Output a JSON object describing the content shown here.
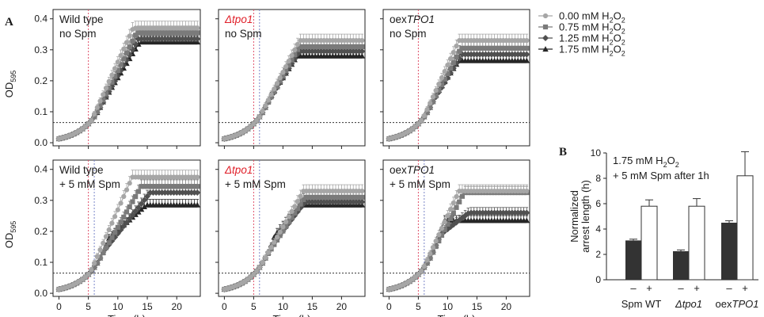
{
  "figure": {
    "letter_a": "A",
    "letter_b": "B",
    "ylabel_a_main": "OD",
    "ylabel_a_sub": "595",
    "xlabel_a": "Time (h)",
    "threshold_od": 0.065,
    "spm_time_wt": 5,
    "spm_time_mut": 6,
    "colors": {
      "s0": "#a6a6a6",
      "s1": "#7a7a7a",
      "s2": "#505050",
      "s3": "#262626",
      "vline_red": "#e0506a",
      "vline_blue": "#7a86c8",
      "frame": "#222222"
    },
    "legend": [
      {
        "prefix": "0.00 mM H",
        "sub": "2",
        "mid": "O",
        "sub2": "2",
        "marker": "circle"
      },
      {
        "prefix": "0.75 mM H",
        "sub": "2",
        "mid": "O",
        "sub2": "2",
        "marker": "square"
      },
      {
        "prefix": "1.25 mM H",
        "sub": "2",
        "mid": "O",
        "sub2": "2",
        "marker": "diamond"
      },
      {
        "prefix": "1.75 mM H",
        "sub": "2",
        "mid": "O",
        "sub2": "2",
        "marker": "triangle"
      }
    ]
  },
  "chart_data": [
    {
      "type": "line",
      "panel": "A-top-left",
      "label_line1_plain": "Wild type",
      "label_line1_italic": "",
      "label_line1_red": false,
      "label_line2": "no Spm",
      "x": [
        0,
        24
      ],
      "xlim": [
        -1,
        24
      ],
      "ylim": [
        -0.01,
        0.43
      ],
      "xticks": [
        0,
        5,
        10,
        15,
        20
      ],
      "yticks": [
        0.0,
        0.1,
        0.2,
        0.3,
        0.4
      ],
      "series": [
        {
          "lag": 5.5,
          "rate": 0.042,
          "plateau": 0.37
        },
        {
          "lag": 6.2,
          "rate": 0.038,
          "plateau": 0.355
        },
        {
          "lag": 6.8,
          "rate": 0.034,
          "plateau": 0.335
        },
        {
          "lag": 7.4,
          "rate": 0.031,
          "plateau": 0.325
        }
      ]
    },
    {
      "type": "line",
      "panel": "A-top-middle",
      "label_line1_plain": "",
      "label_line1_italic": "Δtpo1",
      "label_line1_red": true,
      "label_line2": "no Spm",
      "x": [
        0,
        24
      ],
      "xlim": [
        -1,
        24
      ],
      "ylim": [
        -0.01,
        0.43
      ],
      "xticks": [
        0,
        5,
        10,
        15,
        20
      ],
      "yticks": [
        0.0,
        0.1,
        0.2,
        0.3,
        0.4
      ],
      "series": [
        {
          "lag": 6.0,
          "rate": 0.036,
          "plateau": 0.33
        },
        {
          "lag": 6.8,
          "rate": 0.034,
          "plateau": 0.31
        },
        {
          "lag": 7.3,
          "rate": 0.031,
          "plateau": 0.295
        },
        {
          "lag": 7.8,
          "rate": 0.029,
          "plateau": 0.28
        }
      ]
    },
    {
      "type": "line",
      "panel": "A-top-right",
      "label_line1_plain": "oex",
      "label_line1_italic": "TPO1",
      "label_line1_red": false,
      "label_line2": "no Spm",
      "x": [
        0,
        24
      ],
      "xlim": [
        -1,
        24
      ],
      "ylim": [
        -0.01,
        0.43
      ],
      "xticks": [
        0,
        5,
        10,
        15,
        20
      ],
      "yticks": [
        0.0,
        0.1,
        0.2,
        0.3,
        0.4
      ],
      "series": [
        {
          "lag": 5.8,
          "rate": 0.041,
          "plateau": 0.33
        },
        {
          "lag": 6.6,
          "rate": 0.036,
          "plateau": 0.305
        },
        {
          "lag": 7.4,
          "rate": 0.031,
          "plateau": 0.285
        },
        {
          "lag": 8.0,
          "rate": 0.028,
          "plateau": 0.265
        }
      ]
    },
    {
      "type": "line",
      "panel": "A-bottom-left",
      "label_line1_plain": "Wild type",
      "label_line1_italic": "",
      "label_line1_red": false,
      "label_line2": "+ 5 mM Spm",
      "x": [
        0,
        24
      ],
      "xlim": [
        -1,
        24
      ],
      "ylim": [
        -0.01,
        0.43
      ],
      "xticks": [
        0,
        5,
        10,
        15,
        20
      ],
      "yticks": [
        0.0,
        0.1,
        0.2,
        0.3,
        0.4
      ],
      "series": [
        {
          "lag": 5.3,
          "rate": 0.043,
          "plateau": 0.375
        },
        {
          "lag": 6.5,
          "rate": 0.033,
          "plateau": 0.345
        },
        {
          "lag": 7.5,
          "rate": 0.024,
          "plateau": 0.325
        },
        {
          "lag": 8.4,
          "rate": 0.017,
          "plateau": 0.285
        }
      ]
    },
    {
      "type": "line",
      "panel": "A-bottom-middle",
      "label_line1_plain": "",
      "label_line1_italic": "Δtpo1",
      "label_line1_red": true,
      "label_line2": "+ 5 mM Spm",
      "x": [
        0,
        24
      ],
      "xlim": [
        -1,
        24
      ],
      "ylim": [
        -0.01,
        0.43
      ],
      "xticks": [
        0,
        5,
        10,
        15,
        20
      ],
      "yticks": [
        0.0,
        0.1,
        0.2,
        0.3,
        0.4
      ],
      "series": [
        {
          "lag": 6.2,
          "rate": 0.033,
          "plateau": 0.33
        },
        {
          "lag": 7.0,
          "rate": 0.029,
          "plateau": 0.31
        },
        {
          "lag": 7.8,
          "rate": 0.025,
          "plateau": 0.295
        },
        {
          "lag": 8.6,
          "rate": 0.022,
          "plateau": 0.285
        }
      ]
    },
    {
      "type": "line",
      "panel": "A-bottom-right",
      "label_line1_plain": "oex",
      "label_line1_italic": "TPO1",
      "label_line1_red": false,
      "label_line2": "+ 5 mM Spm",
      "x": [
        0,
        24
      ],
      "xlim": [
        -1,
        24
      ],
      "ylim": [
        -0.01,
        0.43
      ],
      "xticks": [
        0,
        5,
        10,
        15,
        20
      ],
      "yticks": [
        0.0,
        0.1,
        0.2,
        0.3,
        0.4
      ],
      "series": [
        {
          "lag": 5.8,
          "rate": 0.041,
          "plateau": 0.33
        },
        {
          "lag": 6.6,
          "rate": 0.036,
          "plateau": 0.325
        },
        {
          "lag": 8.6,
          "rate": 0.0145,
          "plateau": 0.26
        },
        {
          "lag": 9.4,
          "rate": 0.0107,
          "plateau": 0.235
        }
      ]
    },
    {
      "type": "bar",
      "panel": "B",
      "annotation_line1_prefix": "1.75 mM H",
      "annotation_line1_sub": "2",
      "annotation_line1_mid": "O",
      "annotation_line1_sub2": "2",
      "annotation_line2": "+ 5 mM Spm after 1h",
      "ylabel_line1": "Normalized",
      "ylabel_line2": "arrest length (h)",
      "ylim": [
        0,
        10
      ],
      "yticks": [
        0,
        2,
        4,
        6,
        8,
        10
      ],
      "groups": [
        {
          "name_plain": "Spm WT",
          "name_italic": "",
          "name_red": false,
          "minus_label": "–",
          "plus_label": "+",
          "minus": 3.1,
          "minus_err": 0.1,
          "plus": 5.8,
          "plus_err": 0.5
        },
        {
          "name_plain": "",
          "name_italic": "Δtpo1",
          "name_red": true,
          "minus_label": "–",
          "plus_label": "+",
          "minus": 2.25,
          "minus_err": 0.1,
          "plus": 5.8,
          "plus_err": 0.6
        },
        {
          "name_plain": "oex",
          "name_italic": "TPO1",
          "name_red": false,
          "minus_label": "–",
          "plus_label": "+",
          "minus": 4.5,
          "minus_err": 0.15,
          "plus": 8.2,
          "plus_err": 1.9
        }
      ]
    }
  ]
}
